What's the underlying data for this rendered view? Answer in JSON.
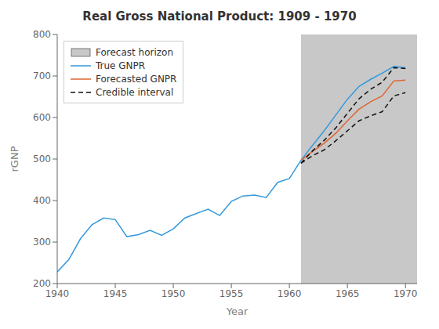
{
  "chart_data": {
    "type": "line",
    "title": "Real Gross National Product: 1909 - 1970",
    "xlabel": "Year",
    "ylabel": "rGNP",
    "x": [
      1940,
      1941,
      1942,
      1943,
      1944,
      1945,
      1946,
      1947,
      1948,
      1949,
      1950,
      1951,
      1952,
      1953,
      1954,
      1955,
      1956,
      1957,
      1958,
      1959,
      1960,
      1961,
      1962,
      1963,
      1964,
      1965,
      1966,
      1967,
      1968,
      1969,
      1970
    ],
    "xlim": [
      1940,
      1971
    ],
    "ylim": [
      200,
      800
    ],
    "xticks": [
      1940,
      1945,
      1950,
      1955,
      1960,
      1965,
      1970
    ],
    "yticks": [
      200,
      300,
      400,
      500,
      600,
      700,
      800
    ],
    "grid": false,
    "legend": "upper left",
    "spans": [
      {
        "name": "Forecast horizon",
        "x": [
          1961,
          1971
        ],
        "color": "#c8c8c8"
      }
    ],
    "series": [
      {
        "name": "True GNPR",
        "color": "#3399dd",
        "line_style": "solid",
        "values": [
          228,
          258,
          308,
          342,
          358,
          354,
          313,
          318,
          328,
          316,
          332,
          358,
          369,
          379,
          364,
          398,
          411,
          413,
          407,
          444,
          453,
          497,
          533,
          568,
          606,
          644,
          675,
          692,
          707,
          723,
          720
        ]
      },
      {
        "name": "Forecasted GNPR",
        "color": "#dd6633",
        "line_style": "solid",
        "values": [
          null,
          null,
          null,
          null,
          null,
          null,
          null,
          null,
          null,
          null,
          null,
          null,
          null,
          null,
          null,
          null,
          null,
          null,
          null,
          null,
          null,
          497,
          518,
          538,
          562,
          592,
          620,
          638,
          652,
          688,
          690
        ]
      },
      {
        "name": "Credible interval",
        "color": "#111111",
        "line_style": "dashed",
        "values": [
          null,
          null,
          null,
          null,
          null,
          null,
          null,
          null,
          null,
          null,
          null,
          null,
          null,
          null,
          null,
          null,
          null,
          null,
          null,
          null,
          null,
          490,
          520,
          545,
          575,
          610,
          645,
          668,
          685,
          720,
          718
        ]
      },
      {
        "name": "Credible interval",
        "color": "#111111",
        "line_style": "dashed",
        "values": [
          null,
          null,
          null,
          null,
          null,
          null,
          null,
          null,
          null,
          null,
          null,
          null,
          null,
          null,
          null,
          null,
          null,
          null,
          null,
          null,
          null,
          490,
          508,
          522,
          544,
          568,
          592,
          604,
          614,
          652,
          660
        ]
      }
    ]
  }
}
